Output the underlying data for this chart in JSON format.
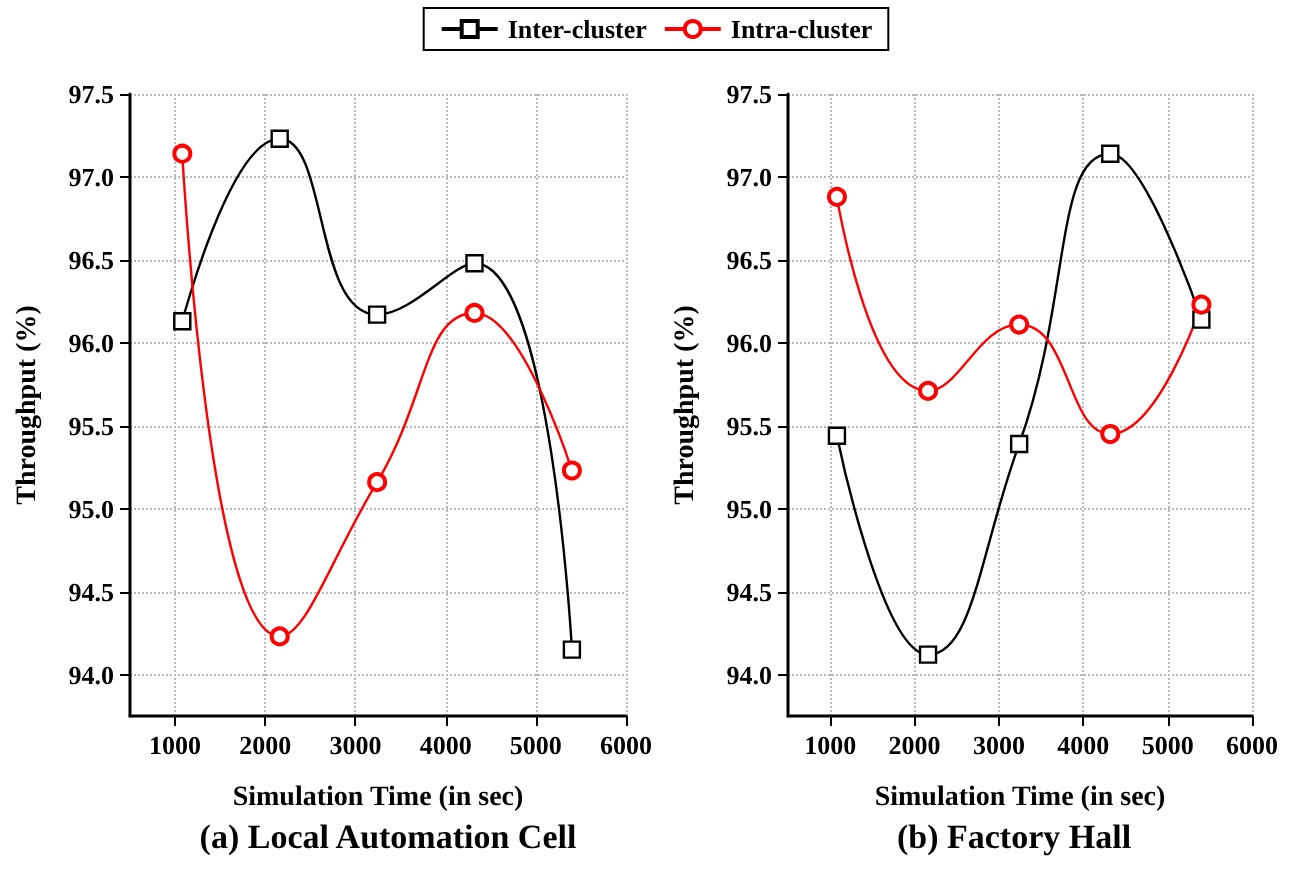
{
  "chart_data": [
    {
      "type": "line",
      "title": "(a) Local Automation Cell",
      "xlabel": "Simulation Time (in sec)",
      "ylabel": "Throughput (%)",
      "x": [
        1080,
        2160,
        3240,
        4320,
        5400
      ],
      "series": [
        {
          "name": "Inter-cluster",
          "color": "#000000",
          "marker": "square",
          "values": [
            96.13,
            97.23,
            96.17,
            96.48,
            94.15
          ]
        },
        {
          "name": "Intra-cluster",
          "color": "#ff0000",
          "marker": "circle",
          "values": [
            97.14,
            94.23,
            95.16,
            96.18,
            95.23
          ]
        }
      ],
      "xlim": [
        500,
        6000
      ],
      "xticks": [
        1000,
        2000,
        3000,
        4000,
        5000,
        6000
      ],
      "ylim": [
        93.75,
        97.5
      ],
      "yticks": [
        {
          "value": 94.0,
          "label": "94.0"
        },
        {
          "value": 94.5,
          "label": "94.5"
        },
        {
          "value": 95.0,
          "label": "95.0"
        },
        {
          "value": 95.5,
          "label": "95.5"
        },
        {
          "value": 96.0,
          "label": "96.0"
        },
        {
          "value": 96.5,
          "label": "96.5"
        },
        {
          "value": 97.0,
          "label": "97.0"
        },
        {
          "value": 97.5,
          "label": "97.5"
        }
      ],
      "grid": true,
      "legend": "top",
      "line_style": "solid"
    },
    {
      "type": "line",
      "title": "(b) Factory Hall",
      "xlabel": "Simulation Time (in sec)",
      "ylabel": "Throughput (%)",
      "x": [
        1080,
        2160,
        3240,
        4320,
        5400
      ],
      "series": [
        {
          "color": "#000000",
          "marker": "square",
          "values": [
            95.44,
            94.12,
            95.39,
            97.14,
            96.14
          ]
        },
        {
          "color": "#ff0000",
          "marker": "circle",
          "values": [
            96.88,
            95.71,
            96.11,
            95.45,
            96.23
          ]
        }
      ],
      "xlim": [
        500,
        6000
      ],
      "xticks": [
        1000,
        2000,
        3000,
        4000,
        5000,
        6000
      ],
      "ylim": [
        93.75,
        97.5
      ],
      "yticks": [
        {
          "value": 94.0,
          "label": "94.0"
        },
        {
          "value": 94.5,
          "label": "94.5"
        },
        {
          "value": 95.0,
          "label": "95.0"
        },
        {
          "value": 95.5,
          "label": "95.5"
        },
        {
          "value": 96.0,
          "label": "96.0"
        },
        {
          "value": 96.5,
          "label": "96.5"
        },
        {
          "value": 97.0,
          "label": "97.0"
        },
        {
          "value": 97.5,
          "label": "97.5"
        }
      ],
      "grid": true,
      "legend": false,
      "line_style": "solid"
    }
  ]
}
